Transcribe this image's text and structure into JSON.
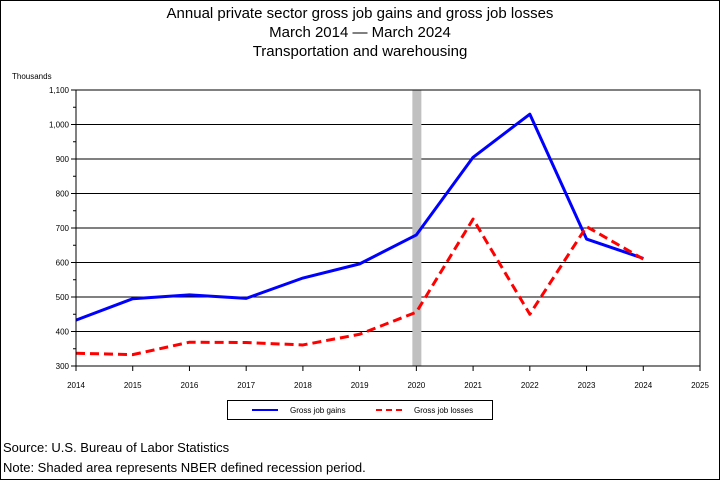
{
  "chart_data": {
    "type": "line",
    "title": "Annual private sector gross job gains and gross job losses",
    "subtitle_lines": [
      "March 2014 — March 2024",
      "Transportation and warehousing"
    ],
    "ylabel": "Thousands",
    "xlabel": "",
    "x": [
      2014,
      2015,
      2016,
      2017,
      2018,
      2019,
      2020,
      2021,
      2022,
      2023,
      2024
    ],
    "xlim": [
      2014,
      2025
    ],
    "x_ticks": [
      "2014",
      "2015",
      "2016",
      "2017",
      "2018",
      "2019",
      "2020",
      "2021",
      "2022",
      "2023",
      "2024",
      "2025"
    ],
    "ylim": [
      300,
      1100
    ],
    "y_ticks": [
      "300",
      "400",
      "500",
      "600",
      "700",
      "800",
      "900",
      "1,000",
      "1,100"
    ],
    "recession_shading": {
      "x": 2020
    },
    "grid": "horizontal",
    "legend_position": "bottom",
    "series": [
      {
        "name": "Gross job gains",
        "color": "#0000ff",
        "style": "solid",
        "values": [
          433,
          495,
          506,
          496,
          555,
          596,
          680,
          905,
          1030,
          668,
          612
        ]
      },
      {
        "name": "Gross job losses",
        "color": "#ff0000",
        "style": "dashed",
        "values": [
          337,
          333,
          369,
          368,
          361,
          392,
          456,
          726,
          450,
          704,
          610
        ]
      }
    ]
  },
  "footnotes": {
    "source": "Source: U.S. Bureau of Labor Statistics",
    "note": "Note: Shaded area represents NBER defined recession period."
  }
}
